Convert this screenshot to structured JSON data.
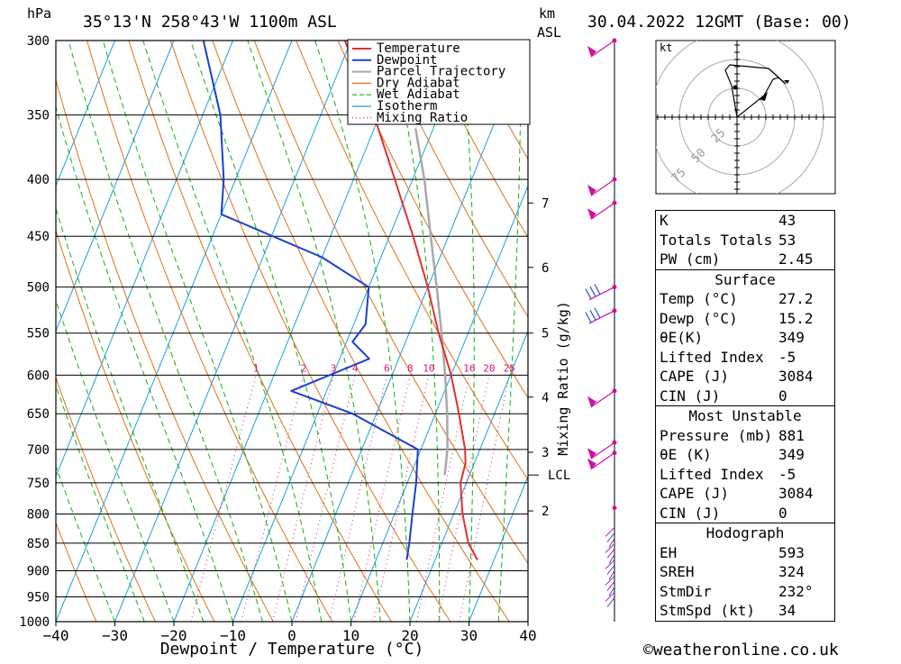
{
  "header": {
    "pressure_unit": "hPa",
    "location": "35°13'N 258°43'W 1100m ASL",
    "km_label": "km",
    "asl_label": "ASL",
    "datetime": "30.04.2022 12GMT (Base: 00)"
  },
  "chart_data": {
    "type": "skew-t",
    "xlabel": "Dewpoint / Temperature (°C)",
    "ylabel": "hPa",
    "xlim": [
      -40,
      40
    ],
    "ylim": [
      1000,
      300
    ],
    "x_ticks": [
      -40,
      -30,
      -20,
      -10,
      0,
      10,
      20,
      30,
      40
    ],
    "pressure_levels": [
      300,
      350,
      400,
      450,
      500,
      550,
      600,
      650,
      700,
      750,
      800,
      850,
      900,
      950,
      1000
    ],
    "legend": [
      "Temperature",
      "Dewpoint",
      "Parcel Trajectory",
      "Dry Adiabat",
      "Wet Adiabat",
      "Isotherm",
      "Mixing Ratio"
    ],
    "mixing_ratio_label": "Mixing Ratio (g/kg)",
    "mixing_ratio_values": [
      1,
      2,
      3,
      4,
      6,
      8,
      10,
      16,
      20,
      25
    ],
    "km_ticks": [
      {
        "km": 2,
        "p": 795
      },
      {
        "km": 3,
        "p": 704
      },
      {
        "km": 4,
        "p": 628
      },
      {
        "km": 5,
        "p": 550
      },
      {
        "km": 6,
        "p": 480
      },
      {
        "km": 7,
        "p": 420
      }
    ],
    "lcl": {
      "label": "LCL",
      "p": 738
    },
    "temperature_profile": [
      {
        "p": 880,
        "t": 27.2
      },
      {
        "p": 850,
        "t": 24.5
      },
      {
        "p": 800,
        "t": 21.5
      },
      {
        "p": 750,
        "t": 19
      },
      {
        "p": 720,
        "t": 18.5
      },
      {
        "p": 700,
        "t": 17.5
      },
      {
        "p": 650,
        "t": 14
      },
      {
        "p": 600,
        "t": 10
      },
      {
        "p": 550,
        "t": 5
      },
      {
        "p": 500,
        "t": 0
      },
      {
        "p": 450,
        "t": -6
      },
      {
        "p": 400,
        "t": -13
      },
      {
        "p": 350,
        "t": -21
      },
      {
        "p": 300,
        "t": -31
      }
    ],
    "dewpoint_profile": [
      {
        "p": 880,
        "t": 15.2
      },
      {
        "p": 850,
        "t": 14.5
      },
      {
        "p": 800,
        "t": 13
      },
      {
        "p": 750,
        "t": 11.5
      },
      {
        "p": 700,
        "t": 9.5
      },
      {
        "p": 650,
        "t": -4
      },
      {
        "p": 620,
        "t": -16
      },
      {
        "p": 580,
        "t": -5
      },
      {
        "p": 560,
        "t": -9
      },
      {
        "p": 540,
        "t": -8
      },
      {
        "p": 500,
        "t": -10
      },
      {
        "p": 470,
        "t": -20
      },
      {
        "p": 430,
        "t": -40
      },
      {
        "p": 400,
        "t": -42
      },
      {
        "p": 350,
        "t": -47
      },
      {
        "p": 300,
        "t": -55
      }
    ],
    "parcel_profile": [
      {
        "p": 738,
        "t": 15.8
      },
      {
        "p": 700,
        "t": 14.5
      },
      {
        "p": 650,
        "t": 12
      },
      {
        "p": 600,
        "t": 9
      },
      {
        "p": 550,
        "t": 5.5
      },
      {
        "p": 500,
        "t": 1.5
      },
      {
        "p": 450,
        "t": -3
      },
      {
        "p": 400,
        "t": -8
      },
      {
        "p": 360,
        "t": -13
      }
    ]
  },
  "hodograph": {
    "unit_label": "kt",
    "rings": [
      25,
      50,
      75
    ]
  },
  "stats": {
    "general": [
      {
        "label": "K",
        "value": "43"
      },
      {
        "label": "Totals Totals",
        "value": "53"
      },
      {
        "label": "PW (cm)",
        "value": "2.45"
      }
    ],
    "surface": {
      "title": "Surface",
      "rows": [
        {
          "label": "Temp (°C)",
          "value": "27.2"
        },
        {
          "label": "Dewp (°C)",
          "value": "15.2"
        },
        {
          "label": "θE(K)",
          "value": "349"
        },
        {
          "label": "Lifted Index",
          "value": "-5"
        },
        {
          "label": "CAPE (J)",
          "value": "3084"
        },
        {
          "label": "CIN (J)",
          "value": "0"
        }
      ]
    },
    "most_unstable": {
      "title": "Most Unstable",
      "rows": [
        {
          "label": "Pressure (mb)",
          "value": "881"
        },
        {
          "label": "θE (K)",
          "value": "349"
        },
        {
          "label": "Lifted Index",
          "value": "-5"
        },
        {
          "label": "CAPE (J)",
          "value": "3084"
        },
        {
          "label": "CIN (J)",
          "value": "0"
        }
      ]
    },
    "hodograph": {
      "title": "Hodograph",
      "rows": [
        {
          "label": "EH",
          "value": "593"
        },
        {
          "label": "SREH",
          "value": "324"
        },
        {
          "label": "StmDir",
          "value": "232°"
        },
        {
          "label": "StmSpd (kt)",
          "value": "34"
        }
      ]
    }
  },
  "footer": {
    "credit": "©weatheronline.co.uk"
  },
  "colors": {
    "temperature": "#e03030",
    "dewpoint": "#1a3fd0",
    "parcel": "#a8a8a8",
    "dry_adiabat": "#e07018",
    "wet_adiabat": "#10b010",
    "isotherm": "#1aa0e0",
    "mixing_ratio": "#e0107a",
    "wind": "#d010a0"
  }
}
